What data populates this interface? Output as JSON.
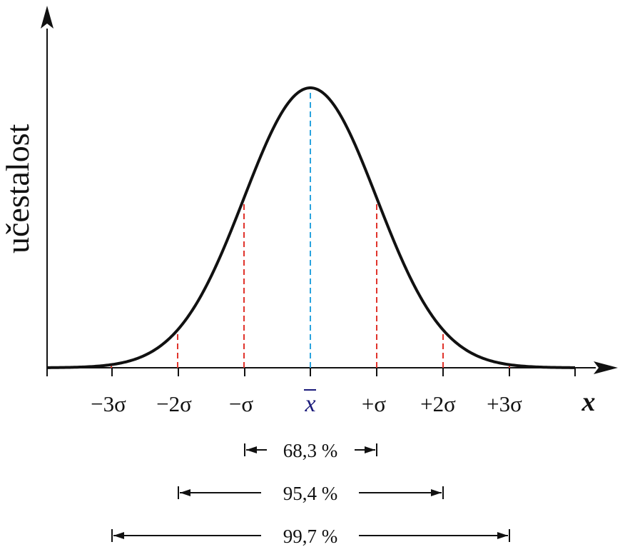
{
  "diagram": {
    "y_axis_label": "učestalost",
    "x_axis_label": "x",
    "tick_labels": [
      "−3σ",
      "−2σ",
      "−σ",
      "x̄",
      "+σ",
      "+2σ",
      "+3σ"
    ],
    "mean_label": "x",
    "intervals": [
      {
        "label": "68,3 %",
        "sigma": 1
      },
      {
        "label": "95,4 %",
        "sigma": 2
      },
      {
        "label": "99,7 %",
        "sigma": 3
      }
    ],
    "colors": {
      "curve": "#111111",
      "axis": "#111111",
      "sigma_lines": "#e0332b",
      "mean_line": "#2aa3de",
      "mean_label": "#1a1a7a"
    }
  }
}
